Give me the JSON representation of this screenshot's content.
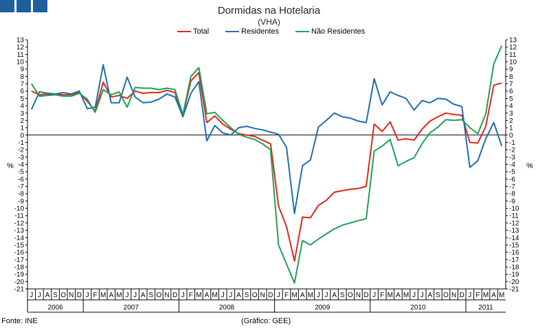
{
  "header": {
    "logo_color": "#1f5f9e"
  },
  "chart_data": {
    "type": "line",
    "title": "Dormidas na Hotelaria",
    "subtitle": "(VHA)",
    "ylabel_left": "%",
    "ylabel_right": "%",
    "ylim": [
      -21,
      13
    ],
    "y_ticks": [
      13,
      12,
      11,
      10,
      9,
      8,
      7,
      6,
      5,
      4,
      3,
      2,
      1,
      0,
      -1,
      -2,
      -3,
      -4,
      -5,
      -6,
      -7,
      -8,
      -9,
      -10,
      -11,
      -12,
      -13,
      -14,
      -15,
      -16,
      -17,
      -18,
      -19,
      -20,
      -21
    ],
    "month_labels": [
      "J",
      "J",
      "A",
      "S",
      "O",
      "N",
      "D",
      "J",
      "F",
      "M",
      "A",
      "M",
      "J",
      "J",
      "A",
      "S",
      "O",
      "N",
      "D",
      "J",
      "F",
      "M",
      "A",
      "M",
      "J",
      "J",
      "A",
      "S",
      "O",
      "N",
      "D",
      "J",
      "F",
      "M",
      "A",
      "M",
      "J",
      "J",
      "A",
      "S",
      "O",
      "N",
      "D",
      "J",
      "F",
      "M",
      "A",
      "M",
      "J",
      "J",
      "A",
      "S",
      "O",
      "N",
      "D",
      "J",
      "F",
      "M",
      "A",
      "M"
    ],
    "years": [
      {
        "label": "2006",
        "start": 0,
        "count": 7
      },
      {
        "label": "2007",
        "start": 7,
        "count": 12
      },
      {
        "label": "2008",
        "start": 19,
        "count": 12
      },
      {
        "label": "2009",
        "start": 31,
        "count": 12
      },
      {
        "label": "2010",
        "start": 43,
        "count": 12
      },
      {
        "label": "2011",
        "start": 55,
        "count": 5
      }
    ],
    "grid": false,
    "legend_position": "top",
    "series": [
      {
        "name": "Total",
        "color": "#e2231a",
        "values": [
          6.0,
          5.5,
          5.6,
          5.6,
          5.5,
          5.5,
          5.8,
          4.6,
          3.3,
          7.2,
          5.2,
          5.4,
          5.0,
          6.0,
          5.7,
          5.8,
          5.8,
          6.1,
          5.8,
          2.7,
          7.4,
          8.5,
          1.7,
          2.6,
          1.5,
          0.8,
          0.2,
          0.0,
          -0.2,
          -0.7,
          -1.2,
          -9.7,
          -12.5,
          -17.2,
          -11.2,
          -11.3,
          -9.6,
          -8.9,
          -7.8,
          -7.6,
          -7.4,
          -7.3,
          -7.0,
          1.5,
          0.5,
          1.8,
          -0.7,
          -0.5,
          -0.7,
          0.8,
          1.9,
          2.5,
          3.0,
          2.8,
          2.7,
          -1.0,
          -1.1,
          1.2,
          6.8,
          7.1
        ]
      },
      {
        "name": "Residentes",
        "color": "#1f6bb0",
        "values": [
          3.5,
          5.9,
          5.7,
          5.6,
          5.8,
          5.6,
          6.0,
          3.6,
          3.8,
          9.6,
          4.4,
          4.4,
          7.9,
          5.2,
          4.4,
          4.5,
          4.9,
          5.6,
          5.2,
          2.5,
          5.7,
          7.3,
          -0.8,
          1.3,
          0.3,
          0.0,
          1.0,
          1.2,
          0.9,
          0.7,
          0.4,
          0.1,
          -1.7,
          -10.7,
          -4.2,
          -3.4,
          1.1,
          2.0,
          3.0,
          2.5,
          2.3,
          1.9,
          1.7,
          7.7,
          4.1,
          5.9,
          5.4,
          5.0,
          3.4,
          4.7,
          4.4,
          5.0,
          4.9,
          4.2,
          3.9,
          -4.4,
          -3.5,
          -0.5,
          1.7,
          -1.5
        ]
      },
      {
        "name": "Não Residentes",
        "color": "#1ea052",
        "values": [
          7.0,
          5.3,
          5.4,
          5.5,
          5.3,
          5.3,
          5.7,
          4.9,
          3.1,
          6.2,
          5.5,
          5.9,
          3.8,
          6.5,
          6.4,
          6.4,
          6.2,
          6.4,
          6.2,
          2.8,
          8.0,
          9.2,
          2.9,
          3.1,
          2.0,
          1.0,
          0.1,
          -0.3,
          -0.6,
          -1.2,
          -2.0,
          -15.0,
          -17.6,
          -20.2,
          -14.4,
          -15.0,
          -14.2,
          -13.5,
          -12.8,
          -12.3,
          -12.0,
          -11.7,
          -11.4,
          -2.2,
          -1.5,
          -0.6,
          -4.2,
          -3.6,
          -3.1,
          -1.2,
          0.3,
          1.1,
          2.1,
          2.0,
          2.1,
          1.0,
          0.2,
          2.9,
          9.7,
          12.2
        ]
      }
    ]
  },
  "footer": {
    "source": "Fonte: INE",
    "credit": "(Gráfico: GEE)"
  }
}
